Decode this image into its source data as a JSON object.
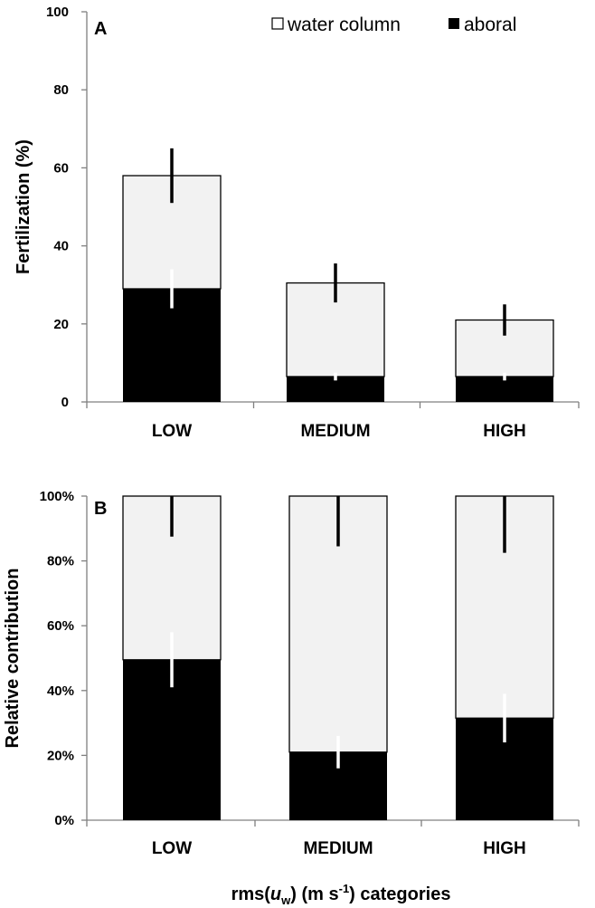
{
  "colors": {
    "water_column": "#f2f2f2",
    "aboral": "#000000",
    "axis": "#808080"
  },
  "legend": {
    "water_column_label": "water column",
    "aboral_label": "aboral"
  },
  "x_axis_title": {
    "prefix": "rms(",
    "variable": "u",
    "subscript": "w",
    "units_open": ") (m s",
    "superscript": "-1",
    "units_close": ") categories"
  },
  "chart_data": [
    {
      "panel_label": "A",
      "type": "bar",
      "stacked": true,
      "ylabel": "Fertilization (%)",
      "ylim": [
        0,
        100
      ],
      "yticks": [
        "0",
        "20",
        "40",
        "60",
        "80",
        "100"
      ],
      "categories": [
        "LOW",
        "MEDIUM",
        "HIGH"
      ],
      "legend_position": "top-right",
      "series": [
        {
          "name": "aboral",
          "values": [
            29,
            6.5,
            6.5
          ],
          "error": [
            5,
            1,
            1
          ]
        },
        {
          "name": "water column",
          "values": [
            29,
            24,
            14.5
          ],
          "error": [
            7,
            5,
            4
          ]
        }
      ],
      "totals": [
        58,
        30.5,
        21
      ]
    },
    {
      "panel_label": "B",
      "type": "bar",
      "stacked": true,
      "ylabel": "Relative contribution",
      "ylim": [
        0,
        100
      ],
      "yticks": [
        "0%",
        "20%",
        "40%",
        "60%",
        "80%",
        "100%"
      ],
      "categories": [
        "LOW",
        "MEDIUM",
        "HIGH"
      ],
      "series": [
        {
          "name": "aboral",
          "values": [
            49.5,
            21,
            31.5
          ],
          "error": [
            8.5,
            5,
            7.5
          ]
        },
        {
          "name": "water column",
          "values": [
            50.5,
            79,
            68.5
          ],
          "error": [
            12.5,
            15.5,
            17.5
          ]
        }
      ]
    }
  ]
}
